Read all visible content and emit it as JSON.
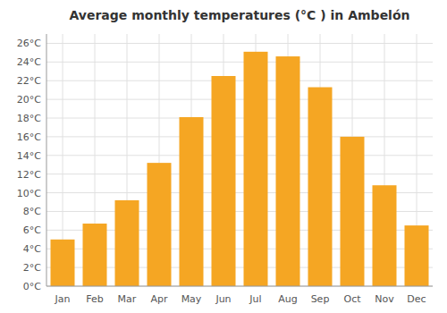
{
  "chart_data": {
    "type": "bar",
    "title": "Average monthly temperatures (°C ) in Ambelón",
    "categories": [
      "Jan",
      "Feb",
      "Mar",
      "Apr",
      "May",
      "Jun",
      "Jul",
      "Aug",
      "Sep",
      "Oct",
      "Nov",
      "Dec"
    ],
    "values": [
      5.0,
      6.7,
      9.2,
      13.2,
      18.1,
      22.5,
      25.1,
      24.6,
      21.3,
      16.0,
      10.8,
      6.5
    ],
    "color": "#F5A623",
    "ylim": [
      0,
      27
    ],
    "yticks": [
      {
        "value": 0,
        "label": "0°C"
      },
      {
        "value": 2,
        "label": "2°C"
      },
      {
        "value": 4,
        "label": "4°C"
      },
      {
        "value": 6,
        "label": "6°C"
      },
      {
        "value": 8,
        "label": "8°C"
      },
      {
        "value": 10,
        "label": "10°C"
      },
      {
        "value": 12,
        "label": "12°C"
      },
      {
        "value": 14,
        "label": "14°C"
      },
      {
        "value": 16,
        "label": "16°C"
      },
      {
        "value": 18,
        "label": "18°C"
      },
      {
        "value": 20,
        "label": "20°C"
      },
      {
        "value": 22,
        "label": "22°C"
      },
      {
        "value": 24,
        "label": "24°C"
      },
      {
        "value": 26,
        "label": "26°C"
      }
    ],
    "grid": true
  }
}
